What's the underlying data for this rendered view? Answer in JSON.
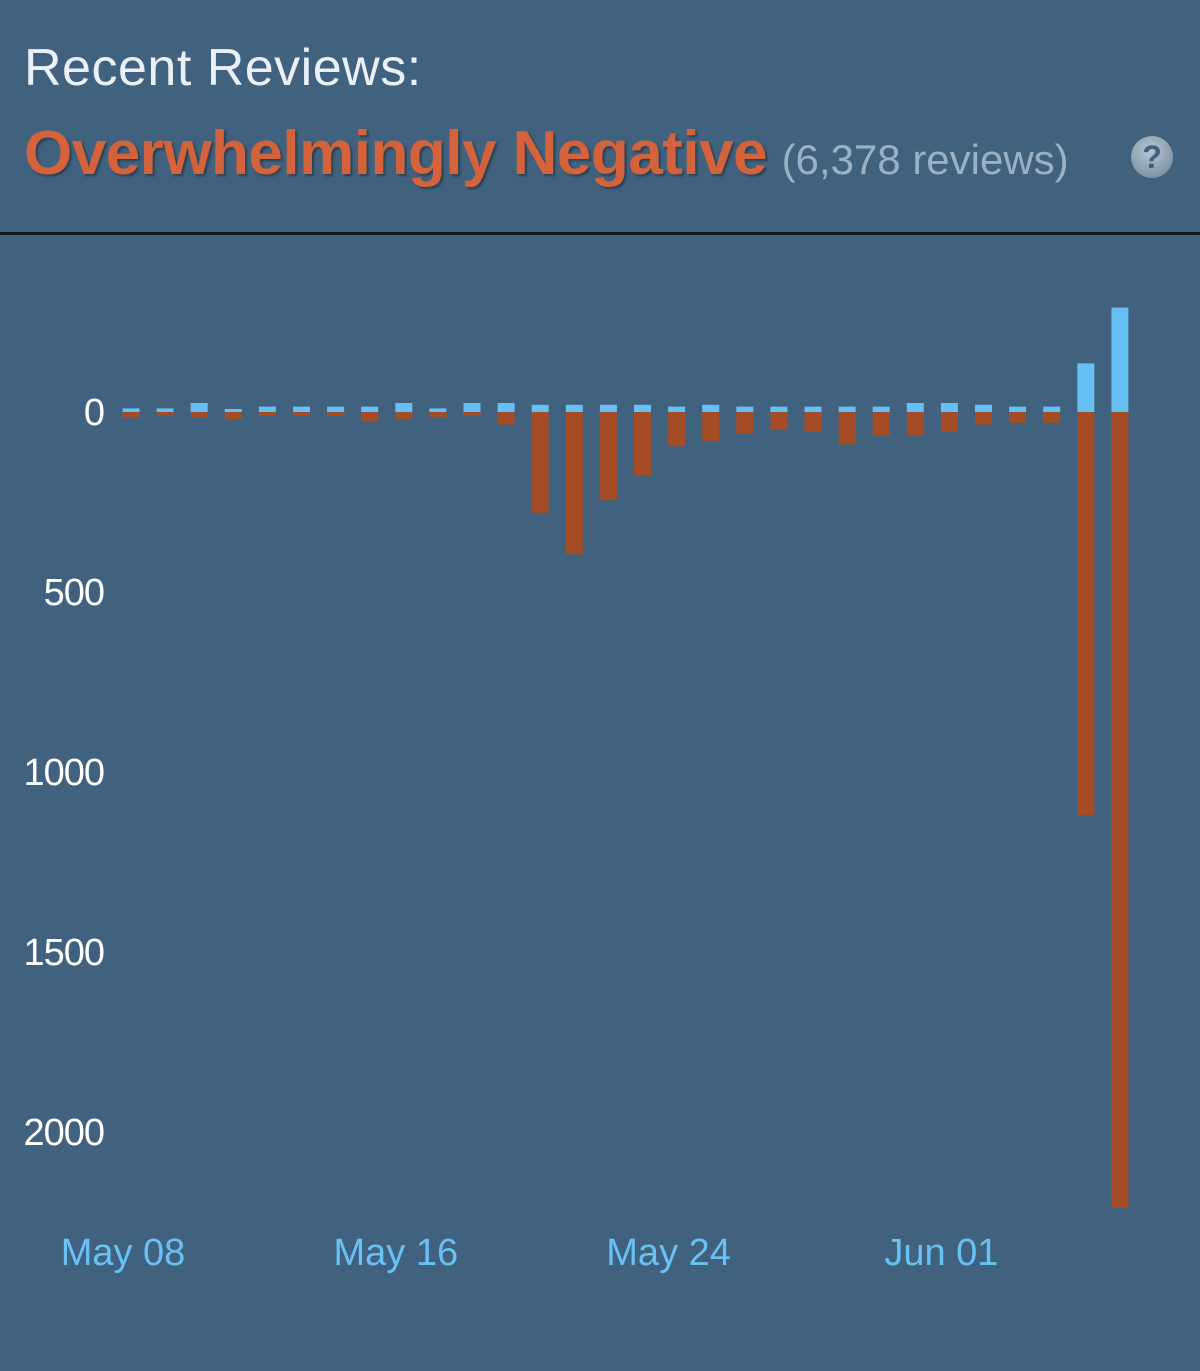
{
  "header": {
    "label": "Recent Reviews:",
    "summary": "Overwhelmingly Negative",
    "count": "(6,378 reviews)",
    "help_icon": "question-mark-icon"
  },
  "colors": {
    "background": "#40627f",
    "positive": "#66c0f4",
    "negative": "#a34c25",
    "summary_text": "#d4623a",
    "x_label": "#67c1f5"
  },
  "chart_data": {
    "type": "bar",
    "categories": [
      "May 08",
      "May 09",
      "May 10",
      "May 11",
      "May 12",
      "May 13",
      "May 14",
      "May 15",
      "May 16",
      "May 17",
      "May 18",
      "May 19",
      "May 20",
      "May 21",
      "May 22",
      "May 23",
      "May 24",
      "May 25",
      "May 26",
      "May 27",
      "May 28",
      "May 29",
      "May 30",
      "May 31",
      "Jun 01",
      "Jun 02",
      "Jun 03",
      "Jun 04",
      "Jun 05",
      "Jun 06"
    ],
    "series": [
      {
        "values": [
          10,
          10,
          25,
          5,
          15,
          15,
          15,
          15,
          25,
          10,
          25,
          25,
          20,
          20,
          20,
          20,
          15,
          20,
          15,
          15,
          15,
          15,
          15,
          25,
          25,
          20,
          15,
          15,
          135,
          290
        ]
      },
      {
        "values": [
          -15,
          -10,
          -15,
          -20,
          -10,
          -10,
          -10,
          -25,
          -20,
          -15,
          -10,
          -35,
          -280,
          -395,
          -245,
          -175,
          -95,
          -80,
          -60,
          -50,
          -55,
          -90,
          -65,
          -65,
          -55,
          -35,
          -30,
          -30,
          -1120,
          -2210
        ]
      }
    ],
    "y_ticks": [
      "0",
      "500",
      "1000",
      "1500",
      "2000"
    ],
    "x_ticks": [
      "May 08",
      "May 16",
      "May 24",
      "Jun 01"
    ],
    "ylim": [
      -2210,
      290
    ]
  }
}
